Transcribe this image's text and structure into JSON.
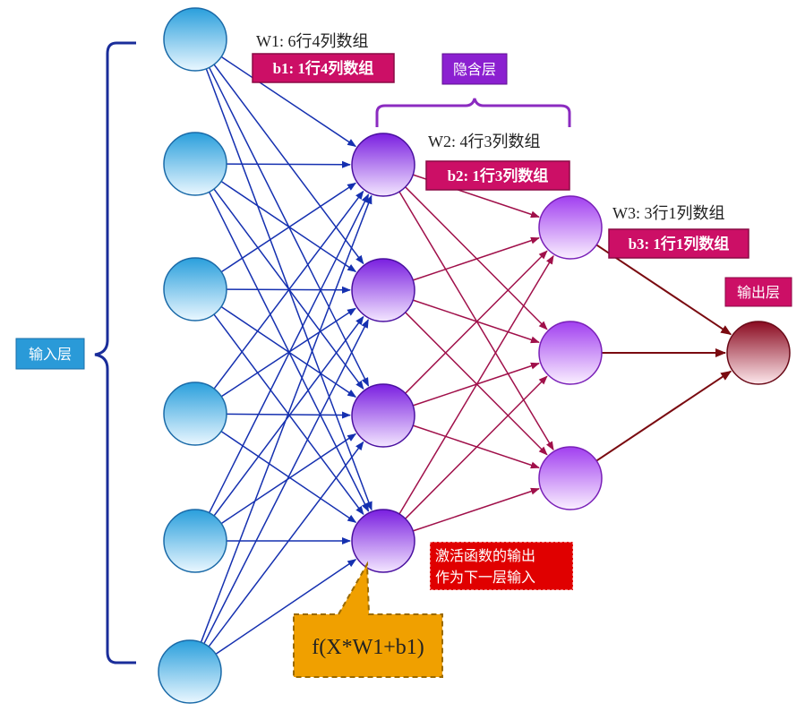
{
  "labels": {
    "input_layer": "输入层",
    "hidden_layer": "隐含层",
    "output_layer": "输出层",
    "w1": "W1: 6行4列数组",
    "b1": "b1: 1行4列数组",
    "w2": "W2: 4行3列数组",
    "b2": "b2: 1行3列数组",
    "w3": "W3: 3行1列数组",
    "b3": "b3: 1行1列数组",
    "activation_line1": "激活函数的输出",
    "activation_line2": "作为下一层输入",
    "formula": "f(X*W1+b1)"
  },
  "network": {
    "layers": [
      {
        "name": "input",
        "nodes": 6
      },
      {
        "name": "hidden1",
        "nodes": 4
      },
      {
        "name": "hidden2",
        "nodes": 3
      },
      {
        "name": "output",
        "nodes": 1
      }
    ]
  },
  "colors": {
    "input_node": "#3aa8e0",
    "hidden1_node": "#8a2be2",
    "hidden2_node": "#b45cf0",
    "output_node": "#a01830",
    "edge_layer1": "#1530b0",
    "edge_layer2": "#a0104a",
    "edge_layer3": "#7a0a10",
    "input_brace": "#1a2d9a",
    "hidden_brace": "#8b2bc0",
    "label_box": "#cc0f66",
    "input_label_box": "#2a9ad8",
    "hidden_label_box": "#8b20d0",
    "callout_red": "#e00000",
    "callout_orange": "#f0a000"
  }
}
